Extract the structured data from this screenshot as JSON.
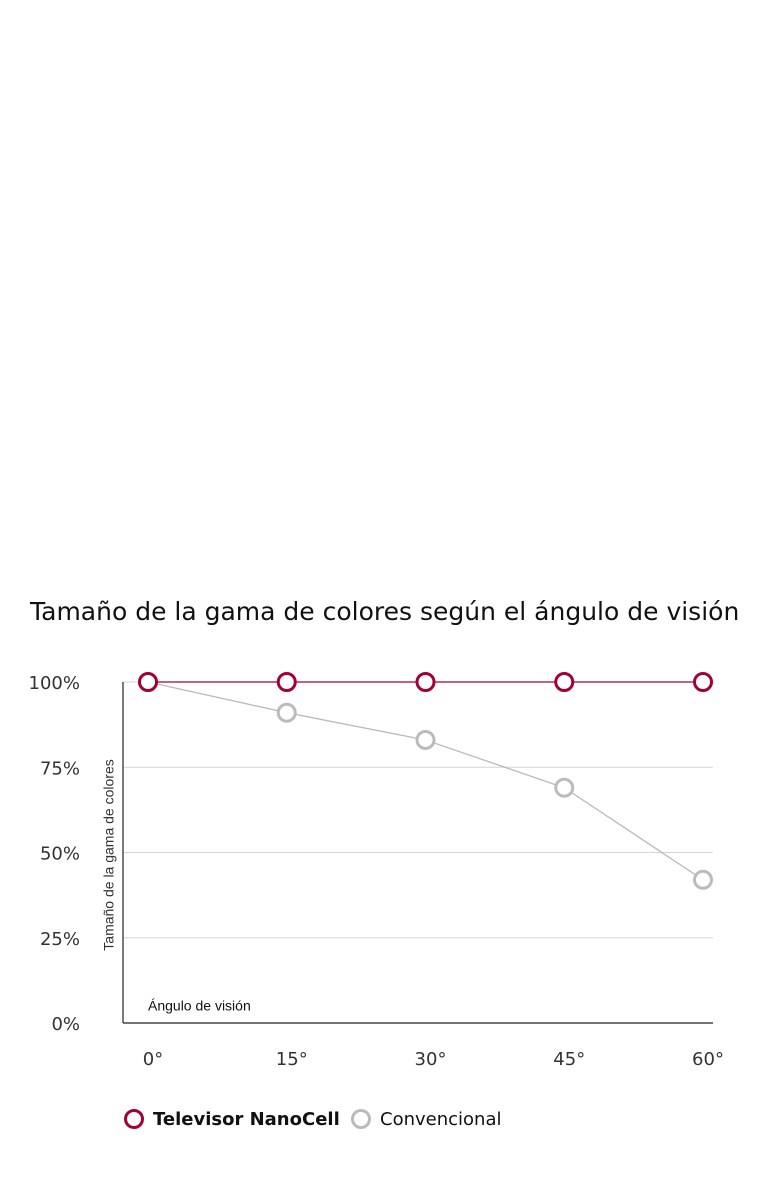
{
  "chart_data": {
    "type": "line",
    "title": "Tamaño de la gama de colores según el ángulo de visión",
    "y_label": "Tamaño de la gama de colores",
    "x_label": "Ángulo de visión",
    "categories": [
      "0°",
      "15°",
      "30°",
      "45°",
      "60°"
    ],
    "series": [
      {
        "name": "Televisor NanoCell",
        "color": "#a50034",
        "values": [
          100,
          100,
          100,
          100,
          100
        ]
      },
      {
        "name": "Convencional",
        "color": "#bbbbbb",
        "values": [
          100,
          91,
          83,
          69,
          42
        ]
      }
    ],
    "ylim": [
      0,
      100
    ],
    "yticks": [
      {
        "value": 0,
        "label": "0%"
      },
      {
        "value": 25,
        "label": "25%"
      },
      {
        "value": 50,
        "label": "50%"
      },
      {
        "value": 75,
        "label": "75%"
      },
      {
        "value": 100,
        "label": "100%"
      }
    ],
    "grid": true
  }
}
